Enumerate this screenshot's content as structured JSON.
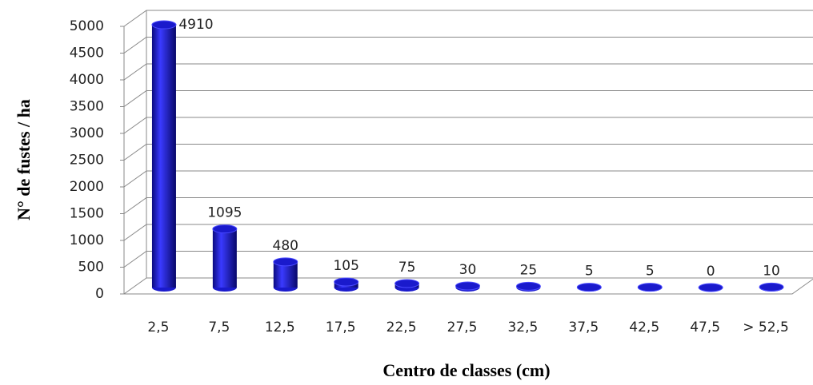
{
  "chart_data": {
    "type": "bar",
    "xlabel": "Centro de classes (cm)",
    "ylabel": "N° de fustes / ha",
    "categories": [
      "2,5",
      "7,5",
      "12,5",
      "17,5",
      "22,5",
      "27,5",
      "32,5",
      "37,5",
      "42,5",
      "47,5",
      "> 52,5"
    ],
    "values": [
      4910,
      1095,
      480,
      105,
      75,
      30,
      25,
      5,
      5,
      0,
      10
    ],
    "color": "#1a1acc",
    "ylim": [
      0,
      5000
    ],
    "yticks": [
      0,
      500,
      1000,
      1500,
      2000,
      2500,
      3000,
      3500,
      4000,
      4500,
      5000
    ],
    "grid": true
  }
}
